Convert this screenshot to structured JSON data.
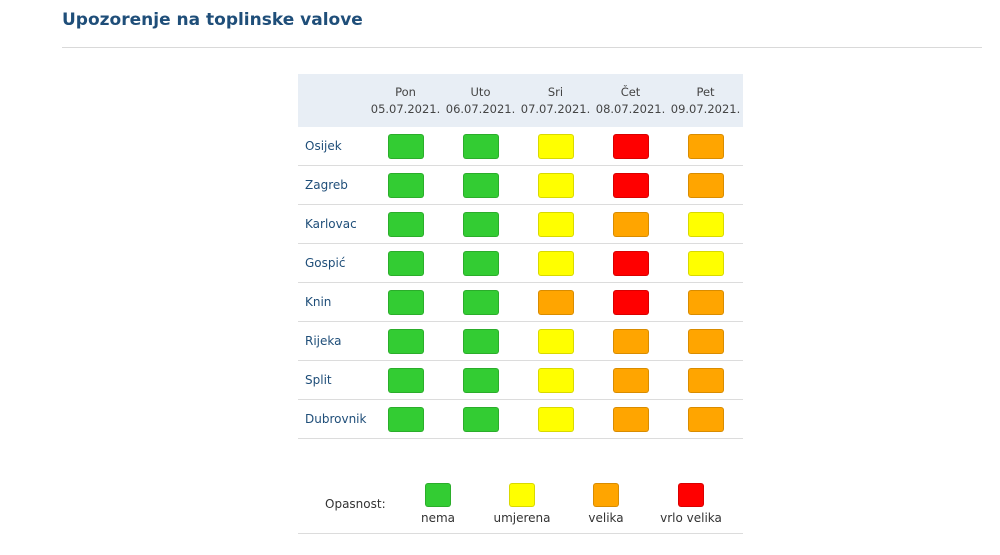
{
  "page": {
    "title": "Upozorenje na toplinske valove"
  },
  "colors": {
    "nema": "#33cc33",
    "umjerena": "#ffff00",
    "velika": "#ffa500",
    "vrlo_velika": "#ff0000"
  },
  "days": [
    {
      "name": "Pon",
      "date": "05.07.2021."
    },
    {
      "name": "Uto",
      "date": "06.07.2021."
    },
    {
      "name": "Sri",
      "date": "07.07.2021."
    },
    {
      "name": "Čet",
      "date": "08.07.2021."
    },
    {
      "name": "Pet",
      "date": "09.07.2021."
    }
  ],
  "rows": [
    {
      "city": "Osijek",
      "levels": [
        "nema",
        "nema",
        "umjerena",
        "vrlo_velika",
        "velika"
      ]
    },
    {
      "city": "Zagreb",
      "levels": [
        "nema",
        "nema",
        "umjerena",
        "vrlo_velika",
        "velika"
      ]
    },
    {
      "city": "Karlovac",
      "levels": [
        "nema",
        "nema",
        "umjerena",
        "velika",
        "umjerena"
      ]
    },
    {
      "city": "Gospić",
      "levels": [
        "nema",
        "nema",
        "umjerena",
        "vrlo_velika",
        "umjerena"
      ]
    },
    {
      "city": "Knin",
      "levels": [
        "nema",
        "nema",
        "velika",
        "vrlo_velika",
        "velika"
      ]
    },
    {
      "city": "Rijeka",
      "levels": [
        "nema",
        "nema",
        "umjerena",
        "velika",
        "velika"
      ]
    },
    {
      "city": "Split",
      "levels": [
        "nema",
        "nema",
        "umjerena",
        "velika",
        "velika"
      ]
    },
    {
      "city": "Dubrovnik",
      "levels": [
        "nema",
        "nema",
        "umjerena",
        "velika",
        "velika"
      ]
    }
  ],
  "legend": {
    "label": "Opasnost:",
    "items": [
      {
        "key": "nema",
        "label": "nema"
      },
      {
        "key": "umjerena",
        "label": "umjerena"
      },
      {
        "key": "velika",
        "label": "velika"
      },
      {
        "key": "vrlo_velika",
        "label": "vrlo velika"
      }
    ]
  }
}
